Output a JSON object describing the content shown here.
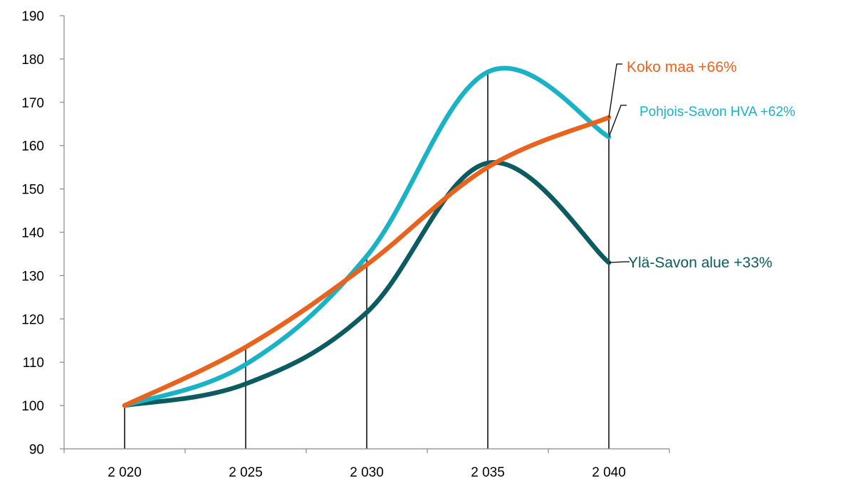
{
  "chart_data": {
    "type": "line",
    "title": "",
    "xlabel": "",
    "ylabel": "",
    "categories": [
      "2 020",
      "2 025",
      "2 030",
      "2 035",
      "2 040"
    ],
    "ylim": [
      90,
      190
    ],
    "yticks": [
      90,
      100,
      110,
      120,
      130,
      140,
      150,
      160,
      170,
      180,
      190
    ],
    "ytick_labels": [
      "90",
      "100",
      "110",
      "120",
      "130",
      "140",
      "150",
      "160",
      "170",
      "180",
      "190"
    ],
    "grid": false,
    "legend": "inline labels at line ends (right)",
    "drop_lines": true,
    "smooth": true,
    "series": [
      {
        "name": "Pohjois-Savon HVA +62%",
        "color": "#1ab3c6",
        "values": [
          100,
          109.5,
          134.5,
          177,
          162
        ]
      },
      {
        "name": "Koko maa +66%",
        "color": "#e8631e",
        "values": [
          100,
          113.5,
          132.5,
          155,
          166.5
        ]
      },
      {
        "name": "Ylä-Savon alue +33%",
        "color": "#0b5b60",
        "values": [
          100,
          105,
          121.5,
          156,
          133
        ]
      }
    ]
  }
}
